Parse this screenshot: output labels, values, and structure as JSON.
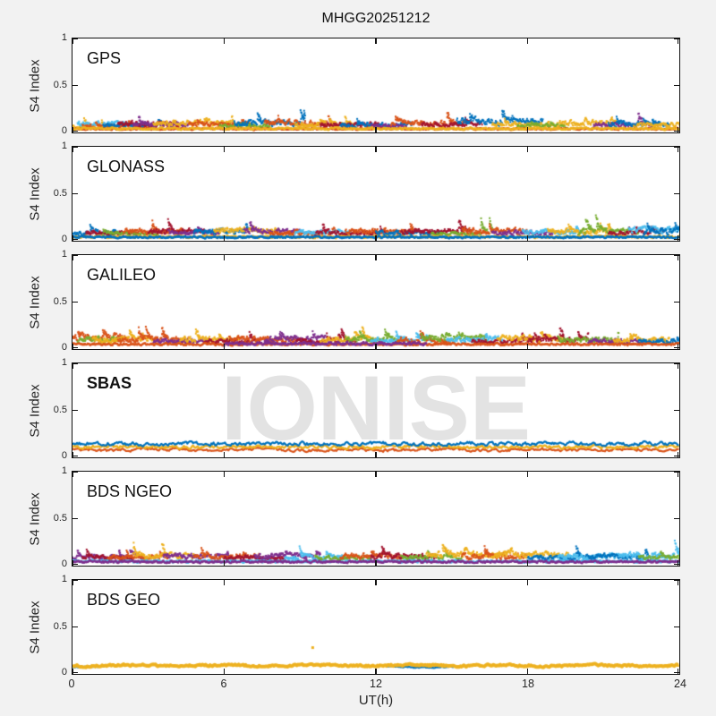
{
  "figure": {
    "title": "MHGG20251212",
    "watermark": "IONISE",
    "background_color": "#f2f2f2",
    "plot_background": "#ffffff",
    "axis_color": "#111111",
    "label_color": "#262626",
    "watermark_color": "#e3e3e3"
  },
  "palette": [
    "#0072BD",
    "#D95319",
    "#EDB120",
    "#7E2F8E",
    "#77AC30",
    "#4DBEEE",
    "#A2142F"
  ],
  "axes": {
    "ylabel": "S4 Index",
    "xlabel": "UT(h)",
    "xlim": [
      0,
      24
    ],
    "ylim": [
      0,
      1
    ],
    "xticks": [
      0,
      6,
      12,
      18,
      24
    ],
    "yticks": [
      0,
      0.5,
      1
    ],
    "xtick_labels": [
      "0",
      "6",
      "12",
      "18",
      "24"
    ],
    "ytick_labels": [
      "1",
      "0.5",
      "0"
    ]
  },
  "trace_format": [
    "color_index",
    "x_start_h",
    "x_end_h",
    "base_s4",
    "noise_amp_s4",
    "spike_max_s4"
  ],
  "chart_data": [
    {
      "panel": "GPS",
      "type": "scatter",
      "summary": "Multi-satellite S4 scatter, mostly 0.00-0.20 with brief spikes to ~0.27",
      "traces": [
        [
          2,
          0,
          1.6,
          0.02,
          0.05,
          0.12
        ],
        [
          5,
          0.2,
          2.4,
          0.05,
          0.06,
          0.1
        ],
        [
          1,
          0.4,
          3.2,
          0.03,
          0.05,
          0.08
        ],
        [
          0,
          1.2,
          3.6,
          0.04,
          0.06,
          0.1
        ],
        [
          6,
          1.8,
          4.2,
          0.04,
          0.07,
          0.14
        ],
        [
          3,
          2.4,
          4.6,
          0.04,
          0.06,
          0.18
        ],
        [
          2,
          3.2,
          6.4,
          0.05,
          0.07,
          0.16
        ],
        [
          1,
          4.6,
          7.2,
          0.04,
          0.06,
          0.1
        ],
        [
          4,
          5.8,
          7.8,
          0.03,
          0.05,
          0.08
        ],
        [
          0,
          6.4,
          9.2,
          0.05,
          0.07,
          0.16
        ],
        [
          1,
          7.6,
          10.2,
          0.05,
          0.07,
          0.12
        ],
        [
          2,
          8.8,
          11.2,
          0.04,
          0.06,
          0.1
        ],
        [
          6,
          9.8,
          12.2,
          0.04,
          0.06,
          0.14
        ],
        [
          0,
          10.6,
          13.4,
          0.04,
          0.06,
          0.1
        ],
        [
          3,
          11.8,
          13.2,
          0.03,
          0.05,
          0.14
        ],
        [
          1,
          12.6,
          15.6,
          0.05,
          0.07,
          0.14
        ],
        [
          6,
          13.8,
          16.2,
          0.04,
          0.06,
          0.16
        ],
        [
          0,
          15.2,
          18.6,
          0.06,
          0.08,
          0.14
        ],
        [
          2,
          16.6,
          19.2,
          0.04,
          0.06,
          0.1
        ],
        [
          4,
          17.6,
          19.6,
          0.03,
          0.05,
          0.08
        ],
        [
          2,
          19.2,
          21.6,
          0.05,
          0.07,
          0.12
        ],
        [
          3,
          20.6,
          23.2,
          0.04,
          0.06,
          0.2
        ],
        [
          0,
          21.2,
          23.6,
          0.04,
          0.06,
          0.1
        ],
        [
          2,
          22.2,
          24,
          0.04,
          0.06,
          0.1
        ],
        [
          1,
          0,
          24,
          0.02,
          0.025,
          0
        ],
        [
          2,
          0,
          24,
          0.02,
          0.03,
          0
        ]
      ]
    },
    {
      "panel": "GLONASS",
      "type": "scatter",
      "summary": "Multi-satellite S4 scatter, mostly 0.00-0.22 with spikes to ~0.27",
      "traces": [
        [
          0,
          0,
          1.8,
          0.04,
          0.06,
          0.12
        ],
        [
          6,
          0.5,
          2.6,
          0.04,
          0.06,
          0.1
        ],
        [
          4,
          1.2,
          3.4,
          0.04,
          0.05,
          0.1
        ],
        [
          1,
          2.0,
          4.4,
          0.05,
          0.07,
          0.16
        ],
        [
          6,
          3.0,
          5.2,
          0.05,
          0.07,
          0.18
        ],
        [
          3,
          3.8,
          5.8,
          0.04,
          0.06,
          0.12
        ],
        [
          0,
          4.8,
          7.0,
          0.05,
          0.07,
          0.14
        ],
        [
          2,
          5.6,
          8.2,
          0.06,
          0.08,
          0.16
        ],
        [
          3,
          6.8,
          9.0,
          0.05,
          0.07,
          0.2
        ],
        [
          1,
          7.8,
          10.4,
          0.04,
          0.06,
          0.12
        ],
        [
          5,
          8.8,
          11.0,
          0.05,
          0.06,
          0.1
        ],
        [
          6,
          9.6,
          12.4,
          0.04,
          0.06,
          0.12
        ],
        [
          1,
          10.8,
          13.6,
          0.05,
          0.07,
          0.14
        ],
        [
          0,
          12.0,
          14.6,
          0.04,
          0.06,
          0.1
        ],
        [
          6,
          13.0,
          15.8,
          0.05,
          0.07,
          0.16
        ],
        [
          4,
          14.2,
          16.6,
          0.04,
          0.05,
          0.2
        ],
        [
          1,
          15.4,
          18.0,
          0.05,
          0.07,
          0.12
        ],
        [
          3,
          16.6,
          19.0,
          0.04,
          0.06,
          0.14
        ],
        [
          5,
          17.8,
          20.2,
          0.05,
          0.06,
          0.1
        ],
        [
          2,
          18.8,
          21.4,
          0.05,
          0.07,
          0.12
        ],
        [
          4,
          20.0,
          22.4,
          0.05,
          0.07,
          0.22
        ],
        [
          6,
          21.2,
          23.4,
          0.04,
          0.06,
          0.12
        ],
        [
          5,
          22.0,
          24,
          0.06,
          0.08,
          0.14
        ],
        [
          0,
          22.6,
          24,
          0.05,
          0.07,
          0.1
        ],
        [
          2,
          0,
          24,
          0.02,
          0.03,
          0
        ],
        [
          0,
          0,
          24,
          0.02,
          0.025,
          0
        ]
      ]
    },
    {
      "panel": "GALILEO",
      "type": "scatter",
      "summary": "Wispy satellite arcs, S4 mostly 0.00-0.25 with spikes to ~0.3",
      "traces": [
        [
          1,
          0,
          2.2,
          0.07,
          0.08,
          0.14
        ],
        [
          4,
          0.2,
          2.0,
          0.05,
          0.07,
          0.12
        ],
        [
          2,
          0.8,
          3.4,
          0.05,
          0.07,
          0.1
        ],
        [
          1,
          1.8,
          4.6,
          0.05,
          0.07,
          0.16
        ],
        [
          3,
          3.2,
          5.4,
          0.04,
          0.06,
          0.18
        ],
        [
          2,
          4.2,
          6.6,
          0.05,
          0.07,
          0.14
        ],
        [
          6,
          5.2,
          7.4,
          0.04,
          0.06,
          0.12
        ],
        [
          1,
          6.2,
          8.8,
          0.05,
          0.08,
          0.16
        ],
        [
          3,
          7.6,
          10.0,
          0.05,
          0.08,
          0.2
        ],
        [
          6,
          8.8,
          11.2,
          0.04,
          0.06,
          0.14
        ],
        [
          2,
          9.8,
          12.0,
          0.05,
          0.07,
          0.16
        ],
        [
          4,
          10.8,
          13.2,
          0.05,
          0.07,
          0.12
        ],
        [
          5,
          11.8,
          14.2,
          0.05,
          0.06,
          0.1
        ],
        [
          1,
          12.8,
          15.0,
          0.05,
          0.07,
          0.16
        ],
        [
          4,
          13.8,
          16.4,
          0.06,
          0.08,
          0.12
        ],
        [
          5,
          14.8,
          17.0,
          0.05,
          0.07,
          0.1
        ],
        [
          6,
          15.8,
          18.2,
          0.04,
          0.06,
          0.14
        ],
        [
          2,
          16.8,
          19.4,
          0.06,
          0.08,
          0.12
        ],
        [
          6,
          18.0,
          20.4,
          0.05,
          0.07,
          0.16
        ],
        [
          4,
          19.2,
          21.6,
          0.05,
          0.07,
          0.12
        ],
        [
          3,
          20.4,
          22.6,
          0.04,
          0.06,
          0.18
        ],
        [
          2,
          21.4,
          23.6,
          0.05,
          0.07,
          0.12
        ],
        [
          0,
          22.4,
          24,
          0.04,
          0.06,
          0.1
        ],
        [
          1,
          0,
          24,
          0.03,
          0.03,
          0
        ],
        [
          3,
          6.0,
          14.0,
          0.03,
          0.04,
          0
        ]
      ]
    },
    {
      "panel": "SBAS",
      "label_bold": true,
      "type": "line",
      "summary": "Three continuous GEO traces: blue ~0.145, yellow ~0.112, orange ~0.08",
      "lines": [
        {
          "color": 1,
          "mean": 0.08,
          "noise": 0.012,
          "width": 2.2
        },
        {
          "color": 2,
          "mean": 0.112,
          "noise": 0.015,
          "width": 2.4
        },
        {
          "color": 0,
          "mean": 0.145,
          "noise": 0.016,
          "width": 2.2
        }
      ]
    },
    {
      "panel": "BDS NGEO",
      "type": "scatter",
      "summary": "Multi-satellite S4 scatter, mostly 0.00-0.2 with spikes to ~0.3",
      "traces": [
        [
          3,
          0,
          2.8,
          0.05,
          0.06,
          0.1
        ],
        [
          6,
          0.4,
          2.4,
          0.04,
          0.06,
          0.1
        ],
        [
          1,
          1.4,
          3.8,
          0.04,
          0.06,
          0.1
        ],
        [
          2,
          2.4,
          4.8,
          0.05,
          0.07,
          0.18
        ],
        [
          3,
          3.6,
          6.2,
          0.05,
          0.07,
          0.12
        ],
        [
          1,
          4.8,
          7.4,
          0.05,
          0.07,
          0.14
        ],
        [
          6,
          6.0,
          8.4,
          0.04,
          0.06,
          0.12
        ],
        [
          3,
          7.2,
          9.8,
          0.05,
          0.07,
          0.16
        ],
        [
          5,
          8.4,
          10.8,
          0.04,
          0.06,
          0.2
        ],
        [
          4,
          9.6,
          11.8,
          0.04,
          0.06,
          0.12
        ],
        [
          1,
          10.6,
          13.0,
          0.05,
          0.07,
          0.14
        ],
        [
          6,
          11.8,
          14.4,
          0.05,
          0.07,
          0.22
        ],
        [
          4,
          13.0,
          15.4,
          0.04,
          0.06,
          0.12
        ],
        [
          2,
          14.0,
          17.2,
          0.06,
          0.08,
          0.14
        ],
        [
          1,
          15.4,
          18.0,
          0.05,
          0.07,
          0.12
        ],
        [
          2,
          16.6,
          19.6,
          0.06,
          0.08,
          0.16
        ],
        [
          0,
          18.0,
          20.6,
          0.04,
          0.06,
          0.2
        ],
        [
          5,
          19.2,
          21.8,
          0.05,
          0.07,
          0.12
        ],
        [
          0,
          20.4,
          22.8,
          0.05,
          0.07,
          0.14
        ],
        [
          5,
          21.6,
          24,
          0.05,
          0.08,
          0.2
        ],
        [
          4,
          22.4,
          24,
          0.04,
          0.06,
          0.1
        ],
        [
          5,
          0,
          24,
          0.025,
          0.03,
          0
        ],
        [
          3,
          0,
          24,
          0.02,
          0.03,
          0
        ]
      ]
    },
    {
      "panel": "BDS GEO",
      "type": "line",
      "summary": "Flat yellow GEO band at S4 ~0.09 across 0-24 h; short blue segments beneath; one yellow outlier near 9.5 h",
      "lines": [
        {
          "color": 0,
          "mean": 0.072,
          "noise": 0.006,
          "width": 2.2,
          "x0": 0,
          "x1": 1.3
        },
        {
          "color": 0,
          "mean": 0.075,
          "noise": 0.006,
          "width": 2.2,
          "x0": 12.4,
          "x1": 15.4
        },
        {
          "color": 2,
          "mean": 0.09,
          "noise": 0.009,
          "width": 4
        }
      ],
      "outliers": [
        {
          "x": 9.5,
          "y": 0.28,
          "color": 2
        }
      ]
    }
  ]
}
